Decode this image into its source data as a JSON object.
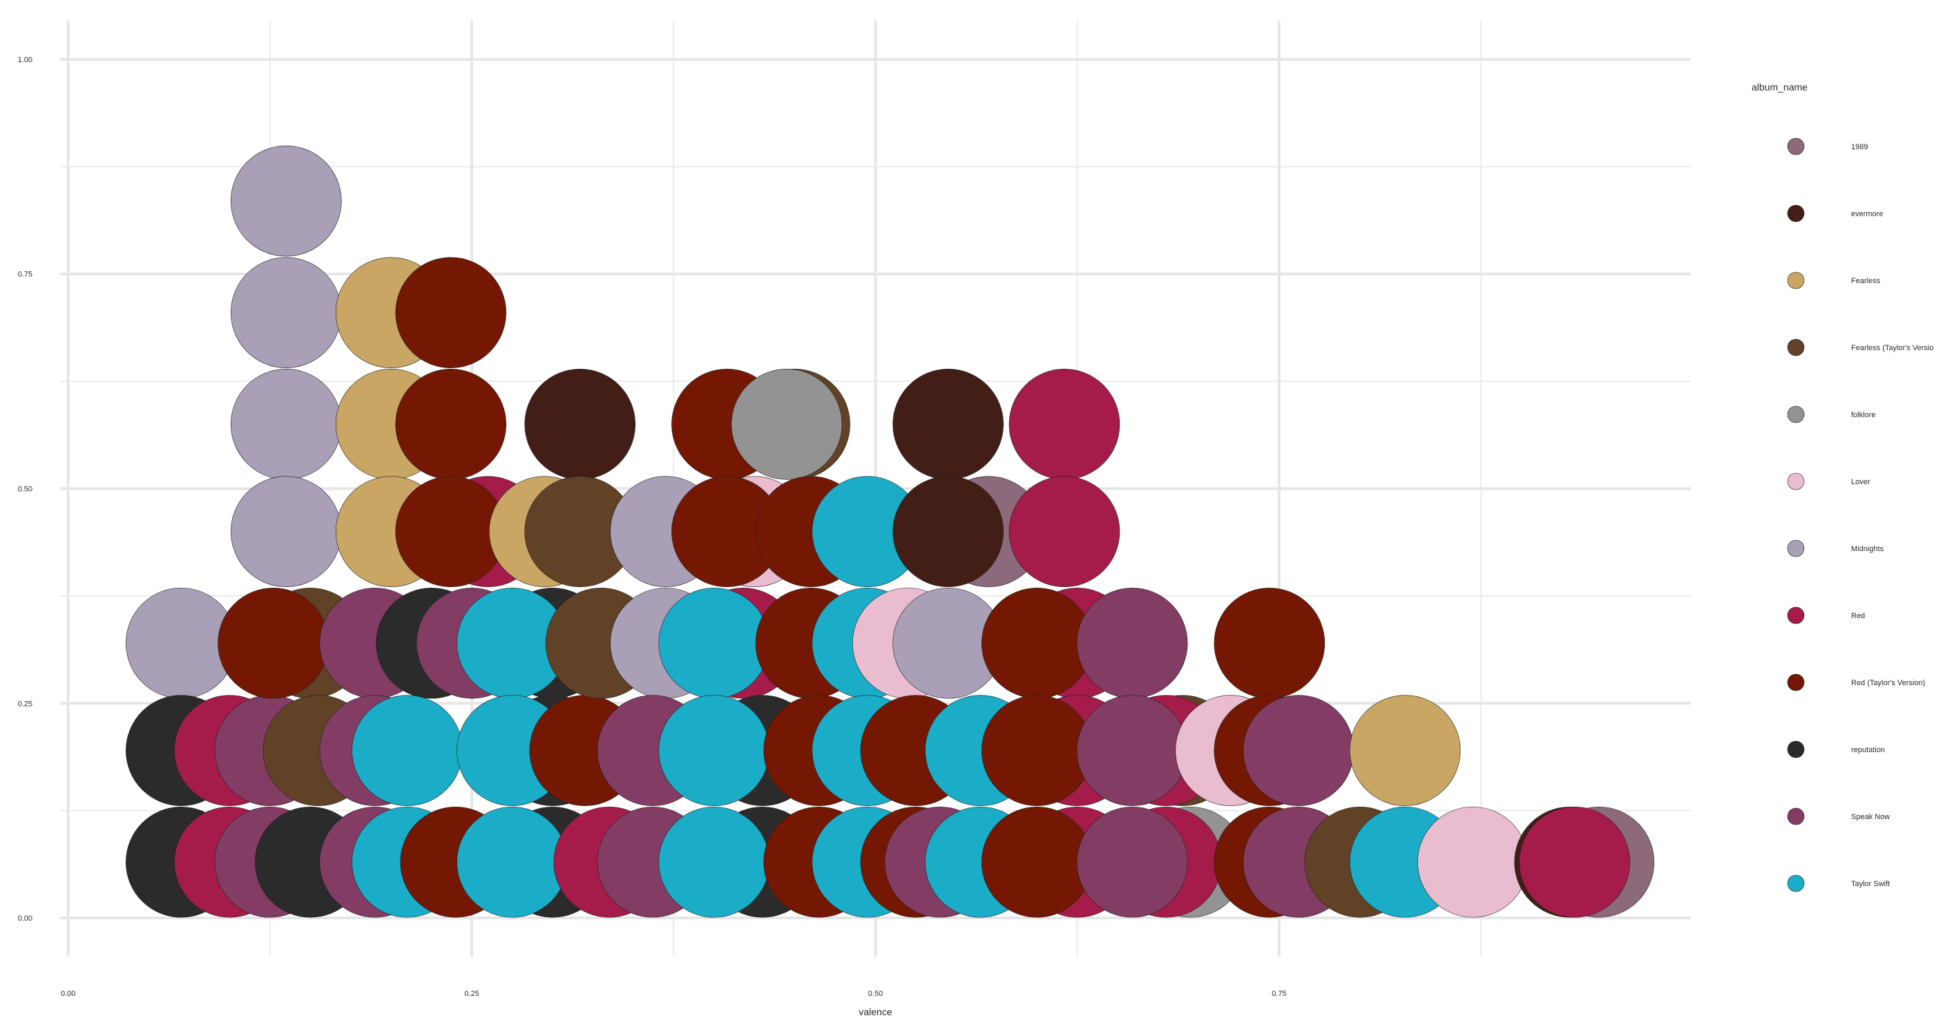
{
  "chart_data": {
    "type": "scatter",
    "title": "",
    "xlabel": "valence",
    "ylabel": "",
    "xlim": [
      -0.005,
      1.005
    ],
    "ylim": [
      -0.045,
      1.045
    ],
    "x_ticks": [
      0.0,
      0.25,
      0.5,
      0.75
    ],
    "x_tick_labels": [
      "0.00",
      "0.25",
      "0.50",
      "0.75"
    ],
    "y_ticks": [
      0.0,
      0.25,
      0.5,
      0.75,
      1.0
    ],
    "y_tick_labels": [
      "0.00",
      "0.25",
      "0.50",
      "0.75",
      "1.00"
    ],
    "grid": true,
    "legend": {
      "title": "album_name",
      "position": "right",
      "entries": [
        {
          "name": "1989",
          "color": "#8c6a7c"
        },
        {
          "name": "evermore",
          "color": "#421e16"
        },
        {
          "name": "Fearless",
          "color": "#c9a664"
        },
        {
          "name": "Fearless (Taylor's Version)",
          "color": "#624226"
        },
        {
          "name": "folklore",
          "color": "#939393"
        },
        {
          "name": "Lover",
          "color": "#eabcd0"
        },
        {
          "name": "Midnights",
          "color": "#a99fb6"
        },
        {
          "name": "Red",
          "color": "#a51c4a"
        },
        {
          "name": "Red (Taylor's Version)",
          "color": "#741804"
        },
        {
          "name": "reputation",
          "color": "#2b2b2b"
        },
        {
          "name": "Speak Now",
          "color": "#833c63"
        },
        {
          "name": "Taylor Swift",
          "color": "#1badc8"
        }
      ]
    },
    "points": [
      {
        "album": "Midnights",
        "x": 0.07,
        "y": 0.32
      },
      {
        "album": "reputation",
        "x": 0.07,
        "y": 0.195
      },
      {
        "album": "reputation",
        "x": 0.07,
        "y": 0.065
      },
      {
        "album": "Red",
        "x": 0.1,
        "y": 0.195
      },
      {
        "album": "Red",
        "x": 0.1,
        "y": 0.065
      },
      {
        "album": "Speak Now",
        "x": 0.125,
        "y": 0.195
      },
      {
        "album": "Speak Now",
        "x": 0.125,
        "y": 0.065
      },
      {
        "album": "Midnights",
        "x": 0.135,
        "y": 0.835
      },
      {
        "album": "Midnights",
        "x": 0.135,
        "y": 0.705
      },
      {
        "album": "Midnights",
        "x": 0.135,
        "y": 0.575
      },
      {
        "album": "Midnights",
        "x": 0.135,
        "y": 0.45
      },
      {
        "album": "Fearless (Taylor's Version)",
        "x": 0.15,
        "y": 0.32
      },
      {
        "album": "Red (Taylor's Version)",
        "x": 0.127,
        "y": 0.32
      },
      {
        "album": "Fearless (Taylor's Version)",
        "x": 0.155,
        "y": 0.195
      },
      {
        "album": "reputation",
        "x": 0.15,
        "y": 0.065
      },
      {
        "album": "Speak Now",
        "x": 0.19,
        "y": 0.32
      },
      {
        "album": "Speak Now",
        "x": 0.19,
        "y": 0.195
      },
      {
        "album": "Speak Now",
        "x": 0.19,
        "y": 0.065
      },
      {
        "album": "Fearless",
        "x": 0.2,
        "y": 0.705
      },
      {
        "album": "Fearless",
        "x": 0.2,
        "y": 0.575
      },
      {
        "album": "Fearless",
        "x": 0.2,
        "y": 0.45
      },
      {
        "album": "Red (Taylor's Version)",
        "x": 0.237,
        "y": 0.705
      },
      {
        "album": "Red (Taylor's Version)",
        "x": 0.237,
        "y": 0.575
      },
      {
        "album": "Red",
        "x": 0.26,
        "y": 0.45
      },
      {
        "album": "Red (Taylor's Version)",
        "x": 0.237,
        "y": 0.45
      },
      {
        "album": "reputation",
        "x": 0.225,
        "y": 0.32
      },
      {
        "album": "Speak Now",
        "x": 0.25,
        "y": 0.32
      },
      {
        "album": "Taylor Swift",
        "x": 0.21,
        "y": 0.195
      },
      {
        "album": "Taylor Swift",
        "x": 0.21,
        "y": 0.065
      },
      {
        "album": "Red (Taylor's Version)",
        "x": 0.24,
        "y": 0.065
      },
      {
        "album": "Fearless",
        "x": 0.295,
        "y": 0.45
      },
      {
        "album": "reputation",
        "x": 0.3,
        "y": 0.32
      },
      {
        "album": "Taylor Swift",
        "x": 0.275,
        "y": 0.32
      },
      {
        "album": "reputation",
        "x": 0.3,
        "y": 0.195
      },
      {
        "album": "Taylor Swift",
        "x": 0.275,
        "y": 0.195
      },
      {
        "album": "Red (Taylor's Version)",
        "x": 0.32,
        "y": 0.195
      },
      {
        "album": "reputation",
        "x": 0.3,
        "y": 0.065
      },
      {
        "album": "Taylor Swift",
        "x": 0.275,
        "y": 0.065
      },
      {
        "album": "evermore",
        "x": 0.317,
        "y": 0.575
      },
      {
        "album": "Fearless (Taylor's Version)",
        "x": 0.317,
        "y": 0.45
      },
      {
        "album": "Fearless (Taylor's Version)",
        "x": 0.33,
        "y": 0.32
      },
      {
        "album": "Red",
        "x": 0.335,
        "y": 0.065
      },
      {
        "album": "Midnights",
        "x": 0.37,
        "y": 0.45
      },
      {
        "album": "Midnights",
        "x": 0.37,
        "y": 0.32
      },
      {
        "album": "Speak Now",
        "x": 0.362,
        "y": 0.195
      },
      {
        "album": "Speak Now",
        "x": 0.362,
        "y": 0.065
      },
      {
        "album": "Red (Taylor's Version)",
        "x": 0.408,
        "y": 0.575
      },
      {
        "album": "Lover",
        "x": 0.425,
        "y": 0.45
      },
      {
        "album": "Red (Taylor's Version)",
        "x": 0.408,
        "y": 0.45
      },
      {
        "album": "Red",
        "x": 0.418,
        "y": 0.32
      },
      {
        "album": "Taylor Swift",
        "x": 0.4,
        "y": 0.32
      },
      {
        "album": "reputation",
        "x": 0.43,
        "y": 0.195
      },
      {
        "album": "Taylor Swift",
        "x": 0.4,
        "y": 0.195
      },
      {
        "album": "reputation",
        "x": 0.43,
        "y": 0.065
      },
      {
        "album": "Taylor Swift",
        "x": 0.4,
        "y": 0.065
      },
      {
        "album": "Fearless (Taylor's Version)",
        "x": 0.45,
        "y": 0.575
      },
      {
        "album": "folklore",
        "x": 0.445,
        "y": 0.575
      },
      {
        "album": "Red (Taylor's Version)",
        "x": 0.46,
        "y": 0.45
      },
      {
        "album": "Red (Taylor's Version)",
        "x": 0.46,
        "y": 0.32
      },
      {
        "album": "Red (Taylor's Version)",
        "x": 0.465,
        "y": 0.195
      },
      {
        "album": "Red (Taylor's Version)",
        "x": 0.465,
        "y": 0.065
      },
      {
        "album": "Taylor Swift",
        "x": 0.495,
        "y": 0.45
      },
      {
        "album": "Taylor Swift",
        "x": 0.495,
        "y": 0.32
      },
      {
        "album": "Taylor Swift",
        "x": 0.495,
        "y": 0.195
      },
      {
        "album": "Taylor Swift",
        "x": 0.495,
        "y": 0.065
      },
      {
        "album": "Lover",
        "x": 0.52,
        "y": 0.32
      },
      {
        "album": "Red (Taylor's Version)",
        "x": 0.525,
        "y": 0.195
      },
      {
        "album": "Red (Taylor's Version)",
        "x": 0.525,
        "y": 0.065
      },
      {
        "album": "1989",
        "x": 0.57,
        "y": 0.45
      },
      {
        "album": "evermore",
        "x": 0.545,
        "y": 0.575
      },
      {
        "album": "evermore",
        "x": 0.545,
        "y": 0.45
      },
      {
        "album": "Midnights",
        "x": 0.545,
        "y": 0.32
      },
      {
        "album": "Speak Now",
        "x": 0.54,
        "y": 0.065
      },
      {
        "album": "Taylor Swift",
        "x": 0.565,
        "y": 0.195
      },
      {
        "album": "Taylor Swift",
        "x": 0.565,
        "y": 0.065
      },
      {
        "album": "Red",
        "x": 0.625,
        "y": 0.32
      },
      {
        "album": "Red (Taylor's Version)",
        "x": 0.6,
        "y": 0.32
      },
      {
        "album": "Red",
        "x": 0.625,
        "y": 0.195
      },
      {
        "album": "Red (Taylor's Version)",
        "x": 0.6,
        "y": 0.195
      },
      {
        "album": "Red",
        "x": 0.625,
        "y": 0.065
      },
      {
        "album": "Red (Taylor's Version)",
        "x": 0.6,
        "y": 0.065
      },
      {
        "album": "Red",
        "x": 0.617,
        "y": 0.575
      },
      {
        "album": "Red",
        "x": 0.617,
        "y": 0.45
      },
      {
        "album": "Speak Now",
        "x": 0.659,
        "y": 0.32
      },
      {
        "album": "Fearless (Taylor's Version)",
        "x": 0.69,
        "y": 0.195
      },
      {
        "album": "Red",
        "x": 0.68,
        "y": 0.195
      },
      {
        "album": "Speak Now",
        "x": 0.659,
        "y": 0.195
      },
      {
        "album": "folklore",
        "x": 0.695,
        "y": 0.065
      },
      {
        "album": "Red",
        "x": 0.68,
        "y": 0.065
      },
      {
        "album": "Speak Now",
        "x": 0.659,
        "y": 0.065
      },
      {
        "album": "Lover",
        "x": 0.72,
        "y": 0.195
      },
      {
        "album": "Red (Taylor's Version)",
        "x": 0.744,
        "y": 0.32
      },
      {
        "album": "Red (Taylor's Version)",
        "x": 0.744,
        "y": 0.195
      },
      {
        "album": "Red (Taylor's Version)",
        "x": 0.744,
        "y": 0.065
      },
      {
        "album": "Speak Now",
        "x": 0.762,
        "y": 0.195
      },
      {
        "album": "Speak Now",
        "x": 0.762,
        "y": 0.065
      },
      {
        "album": "Fearless (Taylor's Version)",
        "x": 0.8,
        "y": 0.065
      },
      {
        "album": "Fearless",
        "x": 0.828,
        "y": 0.195
      },
      {
        "album": "Taylor Swift",
        "x": 0.828,
        "y": 0.065
      },
      {
        "album": "Lover",
        "x": 0.87,
        "y": 0.065
      },
      {
        "album": "1989",
        "x": 0.948,
        "y": 0.065
      },
      {
        "album": "evermore",
        "x": 0.93,
        "y": 0.065
      },
      {
        "album": "Red",
        "x": 0.933,
        "y": 0.065
      }
    ]
  }
}
